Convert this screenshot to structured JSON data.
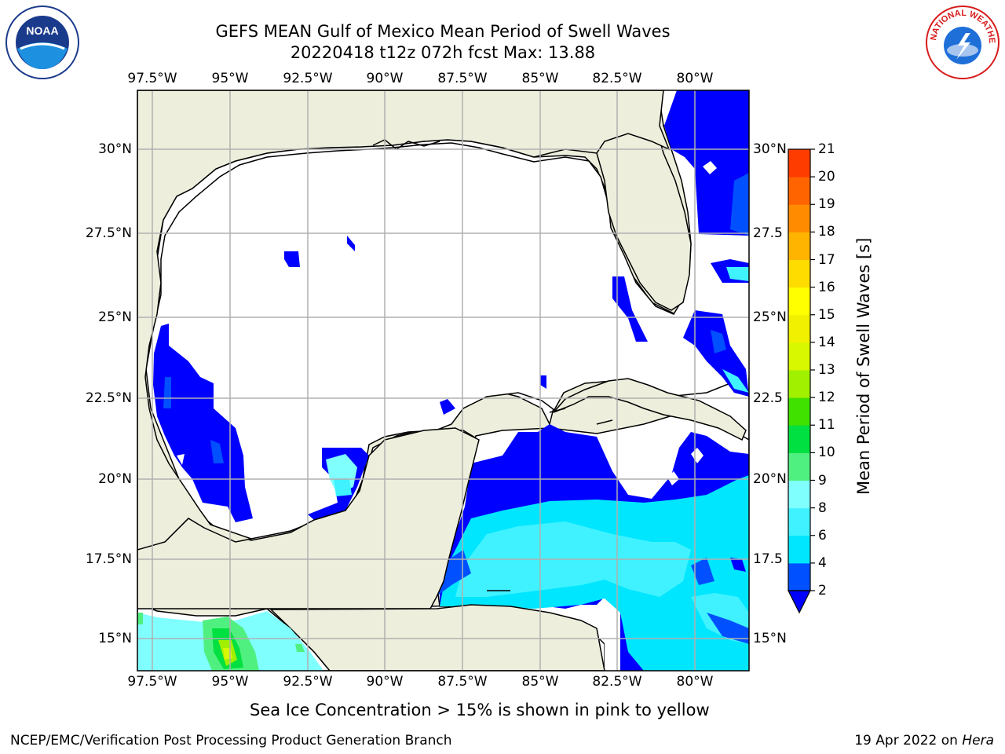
{
  "title": {
    "line1": "GEFS MEAN Gulf of Mexico Mean Period of Swell Waves",
    "line2": "20220418 t12z 072h fcst   Max: 13.88"
  },
  "axes": {
    "lon_ticks": [
      "97.5°W",
      "95°W",
      "92.5°W",
      "90°W",
      "87.5°W",
      "85°W",
      "82.5°W",
      "80°W"
    ],
    "lat_ticks_left": [
      "30°N",
      "27.5°N",
      "25°N",
      "22.5°N",
      "20°N",
      "17.5°N",
      "15°N"
    ],
    "lat_ticks_right": [
      "30°N",
      "27.5",
      "25°N",
      "22.5",
      "20°N",
      "17.5",
      "15°N"
    ]
  },
  "colorbar": {
    "label": "Mean Period of Swell Waves [s]",
    "ticks": [
      "2",
      "4",
      "6",
      "8",
      "9",
      "10",
      "11",
      "12",
      "13",
      "14",
      "15",
      "16",
      "17",
      "18",
      "19",
      "20",
      "21"
    ],
    "colors": [
      "#0050ff",
      "#00e6ff",
      "#40f2ff",
      "#80ffff",
      "#50f080",
      "#00e040",
      "#40e000",
      "#a0f000",
      "#d8f800",
      "#f0f000",
      "#ffff00",
      "#ffdc00",
      "#ffb400",
      "#ff8c00",
      "#ff6400",
      "#ff3c00",
      "#ff0000"
    ],
    "under_color": "#0000ff"
  },
  "caption": "Sea Ice Concentration > 15% is shown in pink to yellow",
  "footer": {
    "left": "NCEP/EMC/Verification Post Processing Product Generation Branch",
    "right_date": "19 Apr 2022 on ",
    "right_machine": "Hera"
  },
  "logos": {
    "left": "NOAA",
    "right": "NATIONAL WEATHER SERVICE"
  },
  "colors": {
    "land": "#eeeedd",
    "water": "#ffffff",
    "grid": "#b0b0b0"
  }
}
